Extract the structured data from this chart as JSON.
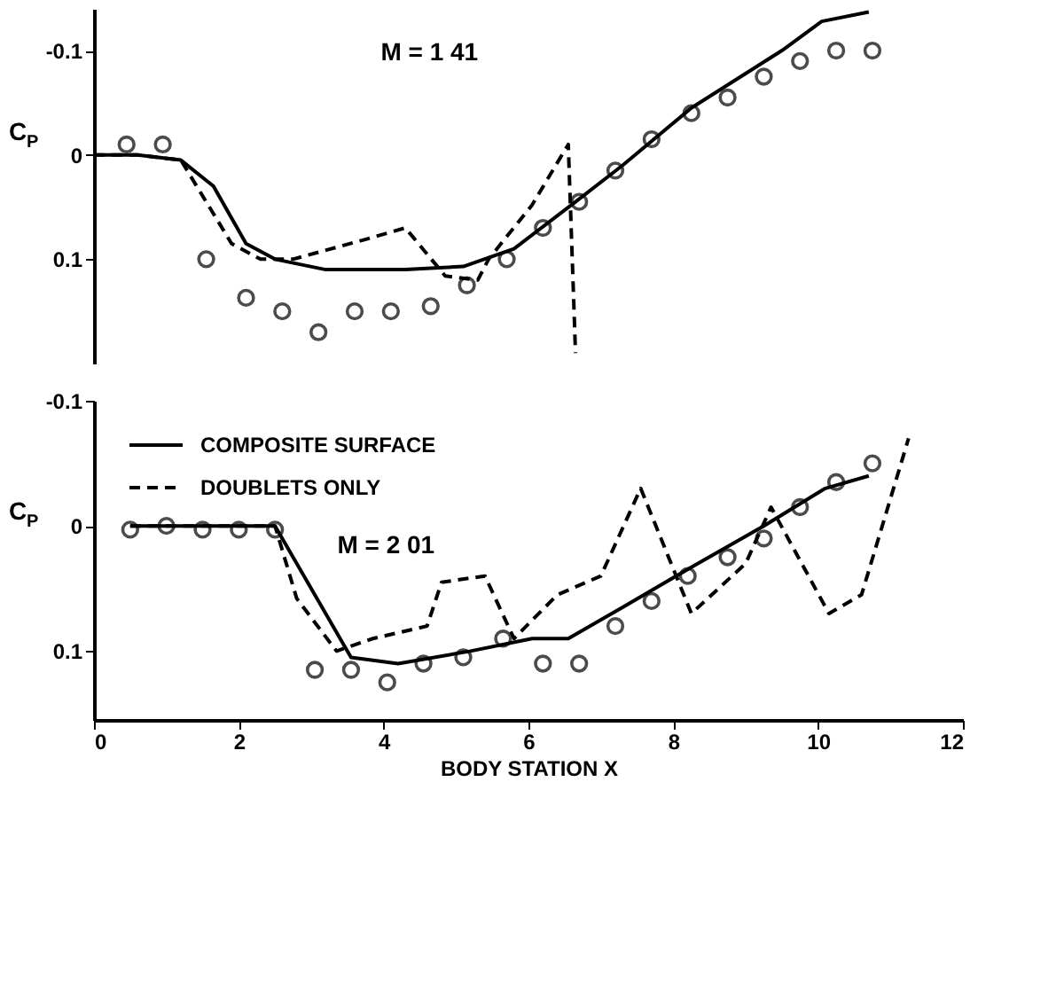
{
  "chart_data": [
    {
      "type": "line",
      "annotations": [
        "M = 1 41"
      ],
      "ylabel": "C$_{P}$",
      "xlim": [
        0,
        12
      ],
      "xticks": [
        0,
        2,
        4,
        6,
        8,
        10,
        12
      ],
      "ylim": [
        0.2,
        -0.14
      ],
      "yticks": [
        -0.1,
        0,
        0.1
      ],
      "tick_labels": "y",
      "grid": false,
      "legend": false,
      "series": [
        {
          "type": "line",
          "line_style": "solid",
          "color": "#000000",
          "x": [
            0,
            0.6,
            1.2,
            1.65,
            2.1,
            2.5,
            3.2,
            4.3,
            5.1,
            5.8,
            6.65,
            7.3,
            8.25,
            9.5,
            10.05,
            10.7
          ],
          "values": [
            0,
            0,
            0.005,
            0.03,
            0.085,
            0.1,
            0.11,
            0.11,
            0.107,
            0.09,
            0.045,
            0.01,
            -0.045,
            -0.1,
            -0.128,
            -0.137
          ]
        },
        {
          "type": "line",
          "line_style": "dashed",
          "color": "#000000",
          "x": [
            0,
            0.6,
            1.2,
            1.9,
            2.3,
            2.75,
            3.8,
            4.3,
            4.85,
            5.3,
            5.45,
            6.05,
            6.55,
            6.65
          ],
          "values": [
            0,
            0,
            0.005,
            0.085,
            0.1,
            0.1,
            0.08,
            0.07,
            0.116,
            0.12,
            0.1,
            0.048,
            -0.01,
            0.19
          ]
        },
        {
          "type": "scatter",
          "marker": "circle",
          "color": "#000000",
          "x": [
            0.45,
            0.95,
            1.55,
            2.1,
            2.6,
            3.1,
            3.6,
            4.1,
            4.65,
            5.15,
            5.7,
            6.2,
            6.7,
            7.2,
            7.7,
            8.25,
            8.75,
            9.25,
            9.75,
            10.25,
            10.75
          ],
          "values": [
            -0.01,
            -0.01,
            0.1,
            0.137,
            0.15,
            0.17,
            0.15,
            0.15,
            0.145,
            0.125,
            0.1,
            0.07,
            0.045,
            0.015,
            -0.015,
            -0.04,
            -0.055,
            -0.075,
            -0.09,
            -0.1,
            -0.1
          ]
        }
      ]
    },
    {
      "type": "line",
      "annotations": [
        "M = 2 01"
      ],
      "ylabel": "C$_{P}$",
      "xlabel": "BODY STATION X",
      "xlim": [
        0,
        12
      ],
      "xticks": [
        0,
        2,
        4,
        6,
        8,
        10,
        12
      ],
      "ylim": [
        0.155,
        -0.1
      ],
      "yticks": [
        -0.1,
        0,
        0.1
      ],
      "grid": false,
      "legend": "top left",
      "series": [
        {
          "type": "line",
          "name": "COMPOSITE SURFACE",
          "line_style": "solid",
          "color": "#000000",
          "x": [
            0.5,
            2.5,
            3.55,
            4.2,
            5.2,
            6.05,
            6.55,
            7.3,
            8.25,
            9.25,
            10.1,
            10.7
          ],
          "values": [
            0,
            0,
            0.105,
            0.11,
            0.1,
            0.09,
            0.09,
            0.065,
            0.033,
            0,
            -0.03,
            -0.04
          ]
        },
        {
          "type": "line",
          "name": "DOUBLETS ONLY",
          "line_style": "dashed",
          "color": "#000000",
          "x": [
            0.5,
            2.5,
            2.8,
            3.35,
            3.85,
            4.6,
            4.8,
            5.4,
            5.8,
            6.4,
            7.0,
            7.55,
            8.25,
            9.0,
            9.35,
            10.15,
            10.6,
            11.25
          ],
          "values": [
            0,
            0,
            0.058,
            0.1,
            0.09,
            0.08,
            0.045,
            0.04,
            0.09,
            0.055,
            0.04,
            -0.03,
            0.07,
            0.03,
            -0.015,
            0.07,
            0.055,
            -0.07
          ]
        },
        {
          "type": "scatter",
          "marker": "circle",
          "color": "#000000",
          "x": [
            0.5,
            1.0,
            1.5,
            2.0,
            2.5,
            3.05,
            3.55,
            4.05,
            4.55,
            5.1,
            5.65,
            6.2,
            6.7,
            7.2,
            7.7,
            8.2,
            8.75,
            9.25,
            9.75,
            10.25,
            10.75
          ],
          "values": [
            0.003,
            0,
            0.003,
            0.003,
            0.003,
            0.115,
            0.115,
            0.125,
            0.11,
            0.105,
            0.09,
            0.11,
            0.11,
            0.08,
            0.06,
            0.04,
            0.025,
            0.01,
            -0.015,
            -0.035,
            -0.05
          ]
        }
      ]
    }
  ]
}
